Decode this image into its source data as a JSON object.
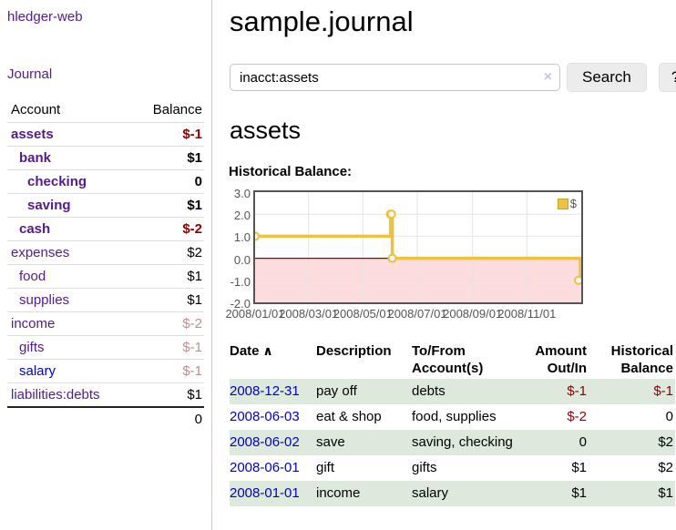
{
  "app": {
    "brand": "hledger-web"
  },
  "nav": {
    "journal": "Journal"
  },
  "sidebar": {
    "header": {
      "account": "Account",
      "balance": "Balance"
    },
    "accounts": [
      {
        "name": "assets",
        "depth": 0,
        "balance": "$-1",
        "bold": true,
        "neg": "strong",
        "link": "purple"
      },
      {
        "name": "bank",
        "depth": 1,
        "balance": "$1",
        "bold": true,
        "neg": "none",
        "link": "purple"
      },
      {
        "name": "checking",
        "depth": 2,
        "balance": "0",
        "bold": true,
        "neg": "none",
        "link": "purple"
      },
      {
        "name": "saving",
        "depth": 2,
        "balance": "$1",
        "bold": true,
        "neg": "none",
        "link": "purple"
      },
      {
        "name": "cash",
        "depth": 1,
        "balance": "$-2",
        "bold": true,
        "neg": "strong",
        "link": "purple"
      },
      {
        "name": "expenses",
        "depth": 0,
        "balance": "$2",
        "bold": false,
        "neg": "none",
        "link": "purple"
      },
      {
        "name": "food",
        "depth": 1,
        "balance": "$1",
        "bold": false,
        "neg": "none",
        "link": "purple"
      },
      {
        "name": "supplies",
        "depth": 1,
        "balance": "$1",
        "bold": false,
        "neg": "none",
        "link": "purple"
      },
      {
        "name": "income",
        "depth": 0,
        "balance": "$-2",
        "bold": false,
        "neg": "soft",
        "link": "purple"
      },
      {
        "name": "gifts",
        "depth": 1,
        "balance": "$-1",
        "bold": false,
        "neg": "soft",
        "link": "purple"
      },
      {
        "name": "salary",
        "depth": 1,
        "balance": "$-1",
        "bold": false,
        "neg": "soft",
        "link": "blue"
      },
      {
        "name": "liabilities:debts",
        "depth": 0,
        "balance": "$1",
        "bold": false,
        "neg": "none",
        "link": "purple"
      }
    ],
    "total": "0"
  },
  "header": {
    "title": "sample.journal"
  },
  "search": {
    "value": "inacct:assets",
    "clear_icon": "×",
    "button_label": "Search",
    "help_label": "?"
  },
  "account_page": {
    "title": "assets",
    "chart_heading": "Historical Balance:"
  },
  "chart_data": {
    "type": "line",
    "step": true,
    "title": "Historical Balance",
    "series": [
      {
        "name": "$",
        "color": "#edc240",
        "points": [
          [
            "2008-01-01",
            1
          ],
          [
            "2008-06-01",
            2
          ],
          [
            "2008-06-02",
            2
          ],
          [
            "2008-06-03",
            0
          ],
          [
            "2008-12-31",
            -1
          ]
        ]
      }
    ],
    "ylim": [
      -2.0,
      3.0
    ],
    "yticks": [
      "3.0",
      "2.0",
      "1.0",
      "0.0",
      "-1.0",
      "-2.0"
    ],
    "xticks": [
      "2008/01/01",
      "2008/03/01",
      "2008/05/01",
      "2008/07/01",
      "2008/09/01",
      "2008/11/01"
    ],
    "xrange": [
      "2008-01-01",
      "2009-01-01"
    ],
    "legend": {
      "label": "$",
      "position": "top-right",
      "swatch_color": "#edc240"
    },
    "grid": true,
    "negative_region_color": "#fcdcdc",
    "zero_line_color": "#990000"
  },
  "register": {
    "columns": [
      {
        "label": "Date",
        "sort": "asc",
        "sort_icon": "∧"
      },
      {
        "label": "Description"
      },
      {
        "label": "To/From Account(s)"
      },
      {
        "label": "Amount Out/In"
      },
      {
        "label": "Historical Balance"
      }
    ],
    "rows": [
      {
        "date": "2008-12-31",
        "description": "pay off",
        "accounts": "debts",
        "amount": "$-1",
        "balance": "$-1",
        "amount_neg": true,
        "balance_neg": true,
        "green": true
      },
      {
        "date": "2008-06-03",
        "description": "eat & shop",
        "accounts": "food, supplies",
        "amount": "$-2",
        "balance": "0",
        "amount_neg": true,
        "balance_neg": false,
        "green": false
      },
      {
        "date": "2008-06-02",
        "description": "save",
        "accounts": "saving, checking",
        "amount": "0",
        "balance": "$2",
        "amount_neg": false,
        "balance_neg": false,
        "green": true
      },
      {
        "date": "2008-06-01",
        "description": "gift",
        "accounts": "gifts",
        "amount": "$1",
        "balance": "$2",
        "amount_neg": false,
        "balance_neg": false,
        "green": false
      },
      {
        "date": "2008-01-01",
        "description": "income",
        "accounts": "salary",
        "amount": "$1",
        "balance": "$1",
        "amount_neg": false,
        "balance_neg": false,
        "green": true
      }
    ]
  }
}
